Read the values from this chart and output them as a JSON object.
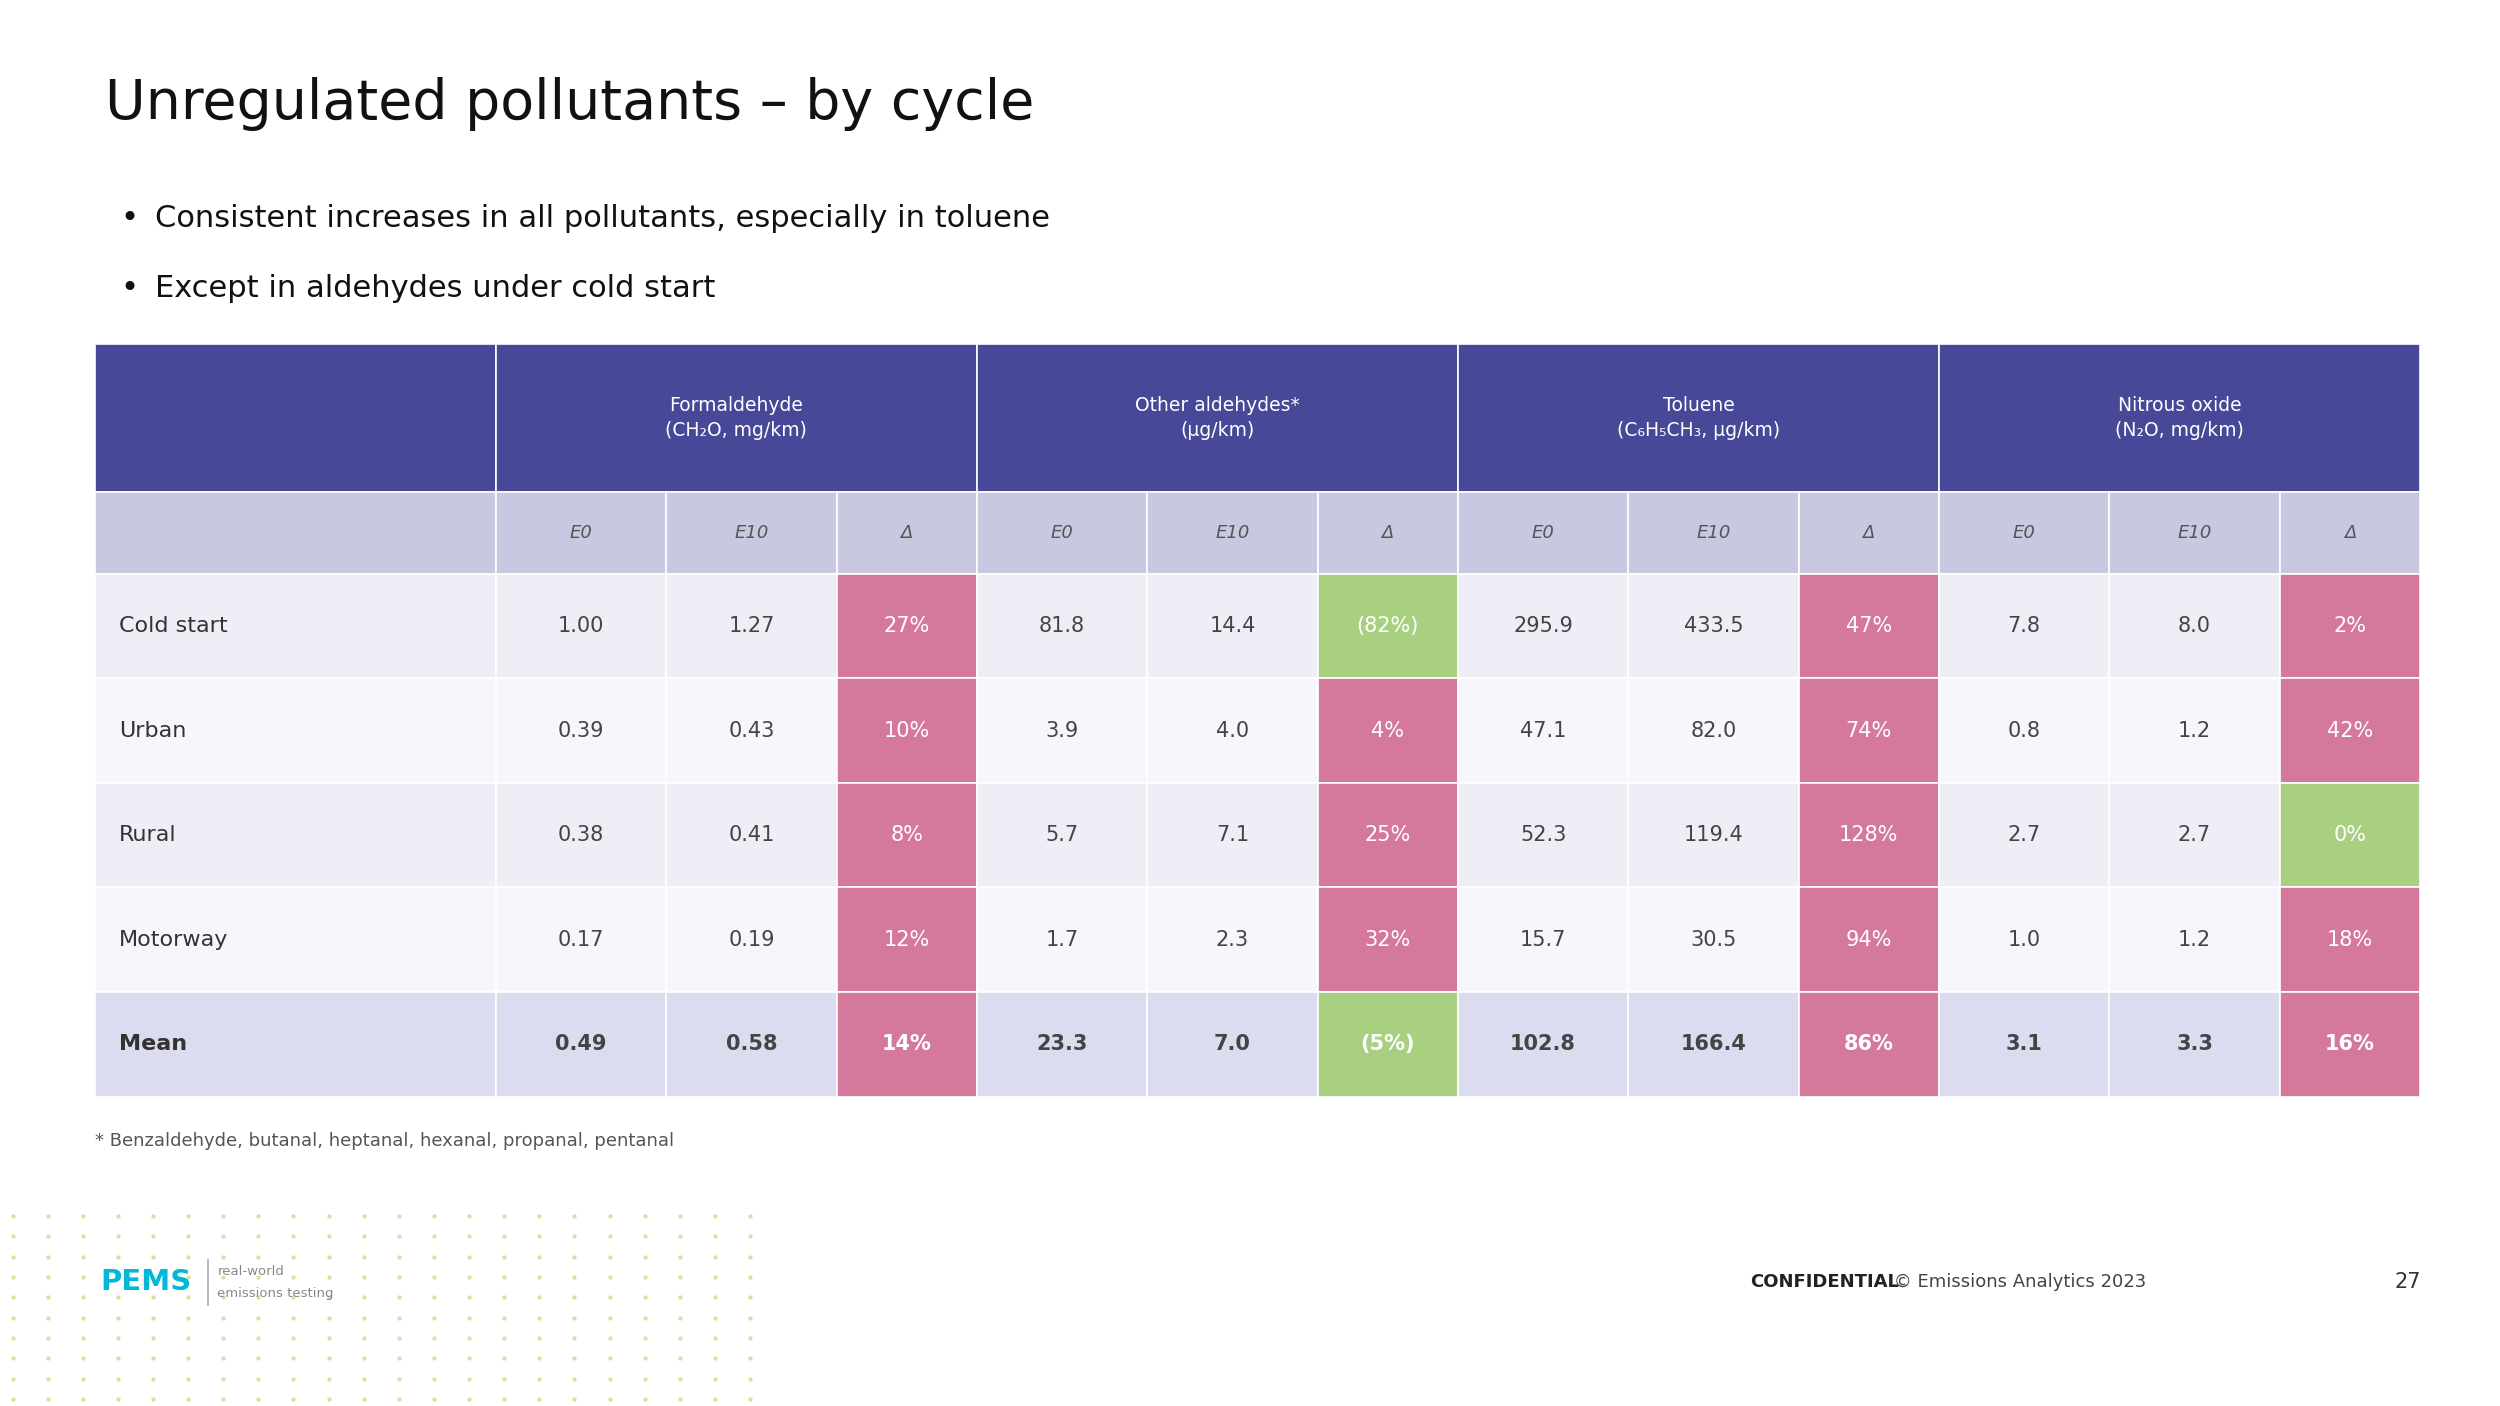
{
  "title": "Unregulated pollutants – by cycle",
  "bullets": [
    "Consistent increases in all pollutants, especially in toluene",
    "Except in aldehydes under cold start"
  ],
  "footnote": "* Benzaldehyde, butanal, heptanal, hexanal, propanal, pentanal",
  "confidential_bold": "CONFIDENTIAL",
  "confidential_rest": " © Emissions Analytics 2023",
  "page_number": "27",
  "col_groups": [
    {
      "label": "Formaldehyde\n(CH₂O, mg/km)"
    },
    {
      "label": "Other aldehydes*\n(μg/km)"
    },
    {
      "label": "Toluene\n(C₆H₅CH₃, μg/km)"
    },
    {
      "label": "Nitrous oxide\n(N₂O, mg/km)"
    }
  ],
  "sub_headers": [
    "E0",
    "E10",
    "Δ",
    "E0",
    "E10",
    "Δ",
    "E0",
    "E10",
    "Δ",
    "E0",
    "E10",
    "Δ"
  ],
  "row_labels": [
    "Cold start",
    "Urban",
    "Rural",
    "Motorway",
    "Mean"
  ],
  "table_data": [
    [
      "1.00",
      "1.27",
      "27%",
      "81.8",
      "14.4",
      "(82%)",
      "295.9",
      "433.5",
      "47%",
      "7.8",
      "8.0",
      "2%"
    ],
    [
      "0.39",
      "0.43",
      "10%",
      "3.9",
      "4.0",
      "4%",
      "47.1",
      "82.0",
      "74%",
      "0.8",
      "1.2",
      "42%"
    ],
    [
      "0.38",
      "0.41",
      "8%",
      "5.7",
      "7.1",
      "25%",
      "52.3",
      "119.4",
      "128%",
      "2.7",
      "2.7",
      "0%"
    ],
    [
      "0.17",
      "0.19",
      "12%",
      "1.7",
      "2.3",
      "32%",
      "15.7",
      "30.5",
      "94%",
      "1.0",
      "1.2",
      "18%"
    ],
    [
      "0.49",
      "0.58",
      "14%",
      "23.3",
      "7.0",
      "(5%)",
      "102.8",
      "166.4",
      "86%",
      "3.1",
      "3.3",
      "16%"
    ]
  ],
  "cell_colors": [
    [
      "bg",
      "bg",
      "pink",
      "bg",
      "bg",
      "green",
      "bg",
      "bg",
      "pink",
      "bg",
      "bg",
      "pink"
    ],
    [
      "bg",
      "bg",
      "pink",
      "bg",
      "bg",
      "pink",
      "bg",
      "bg",
      "pink",
      "bg",
      "bg",
      "pink"
    ],
    [
      "bg",
      "bg",
      "pink",
      "bg",
      "bg",
      "pink",
      "bg",
      "bg",
      "pink",
      "bg",
      "bg",
      "green"
    ],
    [
      "bg",
      "bg",
      "pink",
      "bg",
      "bg",
      "pink",
      "bg",
      "bg",
      "pink",
      "bg",
      "bg",
      "pink"
    ],
    [
      "bg",
      "bg",
      "pink",
      "bg",
      "bg",
      "green",
      "bg",
      "bg",
      "pink",
      "bg",
      "bg",
      "pink"
    ]
  ],
  "pink": "#d4789c",
  "green": "#a8d080",
  "header_bg": "#484898",
  "header_fg": "#ffffff",
  "subheader_bg": "#c8c8e0",
  "subheader_fg": "#555555",
  "row_bg_light": "#eeeef6",
  "row_bg_lighter": "#f6f6fc",
  "mean_row_bg": "#dcdcf0",
  "row_label_color": "#333333",
  "data_fg": "#444444",
  "bg_color": "#ffffff",
  "title_color": "#111111",
  "bullet_color": "#111111"
}
